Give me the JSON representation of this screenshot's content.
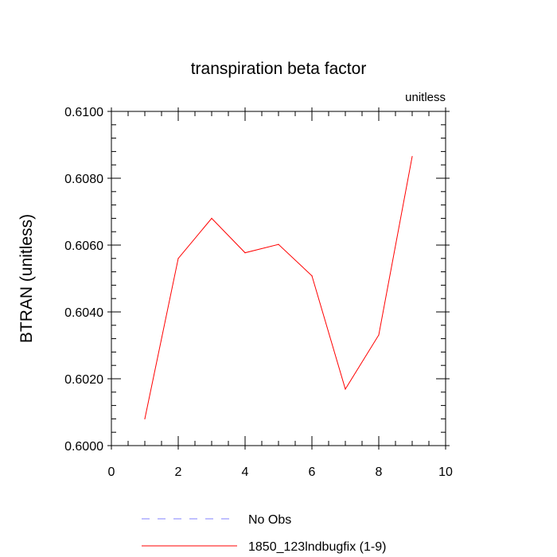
{
  "chart_data": {
    "type": "line",
    "title": "transpiration beta factor",
    "units_label": "unitless",
    "ylabel": "BTRAN  (unitless)",
    "xlabel": "",
    "xlim": [
      0,
      10
    ],
    "ylim": [
      0.6,
      0.61
    ],
    "x_ticks": [
      0,
      2,
      4,
      6,
      8,
      10
    ],
    "x_tick_labels": [
      "0",
      "2",
      "4",
      "6",
      "8",
      "10"
    ],
    "y_ticks": [
      0.6,
      0.602,
      0.604,
      0.606,
      0.608,
      0.61
    ],
    "y_tick_labels": [
      "0.6000",
      "0.6020",
      "0.6040",
      "0.6060",
      "0.6080",
      "0.6100"
    ],
    "grid": false,
    "legend_position": "bottom",
    "series": [
      {
        "name": "No Obs",
        "color": "#8080ff",
        "style": "dashed",
        "x": [],
        "y": []
      },
      {
        "name": "1850_123lndbugfix (1-9)",
        "color": "#ff0000",
        "style": "solid",
        "x": [
          1,
          2,
          3,
          4,
          5,
          6,
          7,
          8,
          9
        ],
        "y": [
          0.6008,
          0.6056,
          0.6068,
          0.60577,
          0.60602,
          0.60508,
          0.60169,
          0.60331,
          0.60865
        ]
      }
    ]
  }
}
